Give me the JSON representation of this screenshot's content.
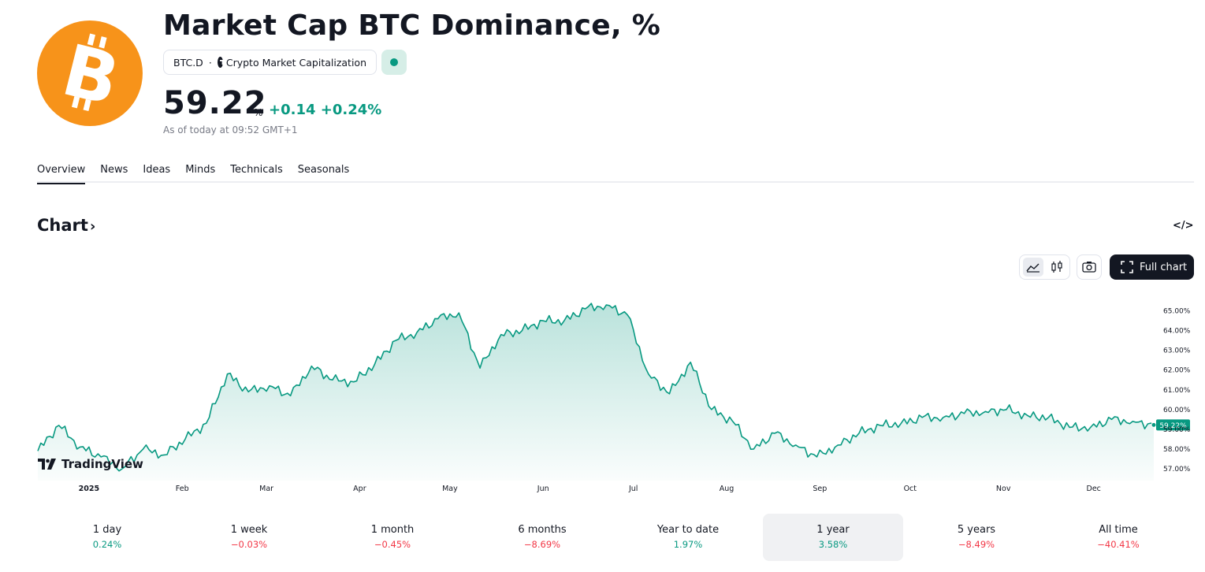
{
  "header": {
    "title": "Market Cap BTC Dominance, %",
    "symbol": "BTC.D",
    "separator": "·",
    "source": "Crypto Market Capitalization",
    "price": "59.22",
    "unit": "%",
    "change": "+0.14",
    "change_pct": "+0.24%",
    "as_of": "As of today at 09:52 GMT+1",
    "logo_icon": "bitcoin-icon",
    "status": "market-open"
  },
  "tabs": [
    "Overview",
    "News",
    "Ideas",
    "Minds",
    "Technicals",
    "Seasonals"
  ],
  "active_tab": "Overview",
  "chart_section": {
    "heading": "Chart",
    "chevron": "›",
    "embed_label": "</>",
    "full_chart_label": "Full chart",
    "watermark": "TradingView"
  },
  "chart_data": {
    "type": "area",
    "x_labels": [
      "2025",
      "Feb",
      "Mar",
      "Apr",
      "May",
      "Jun",
      "Jul",
      "Aug",
      "Sep",
      "Oct",
      "Nov",
      "Dec"
    ],
    "y_ticks": [
      "57.00%",
      "58.00%",
      "59.00%",
      "60.00%",
      "61.00%",
      "62.00%",
      "63.00%",
      "64.00%",
      "65.00%"
    ],
    "ylim": [
      56.4,
      65.9
    ],
    "last_value_label": "59.22%",
    "x": [
      "2024-12-15",
      "2024-12-22",
      "2024-12-29",
      "2025-01-05",
      "2025-01-12",
      "2025-01-19",
      "2025-01-26",
      "2025-02-02",
      "2025-02-09",
      "2025-02-16",
      "2025-02-23",
      "2025-03-02",
      "2025-03-09",
      "2025-03-16",
      "2025-03-23",
      "2025-03-30",
      "2025-04-06",
      "2025-04-13",
      "2025-04-20",
      "2025-04-27",
      "2025-05-04",
      "2025-05-11",
      "2025-05-18",
      "2025-05-25",
      "2025-06-01",
      "2025-06-08",
      "2025-06-15",
      "2025-06-22",
      "2025-06-29",
      "2025-07-06",
      "2025-07-13",
      "2025-07-20",
      "2025-07-27",
      "2025-08-03",
      "2025-08-10",
      "2025-08-17",
      "2025-08-24",
      "2025-08-31",
      "2025-09-07",
      "2025-09-14",
      "2025-09-21",
      "2025-09-28",
      "2025-10-05",
      "2025-10-12",
      "2025-10-19",
      "2025-10-26",
      "2025-11-02",
      "2025-11-09",
      "2025-11-16",
      "2025-11-23",
      "2025-11-30",
      "2025-12-07",
      "2025-12-14",
      "2025-12-21"
    ],
    "values": [
      57.9,
      59.2,
      58.1,
      57.6,
      57.0,
      58.0,
      57.7,
      58.5,
      59.3,
      61.8,
      60.9,
      61.2,
      60.7,
      62.2,
      61.5,
      61.4,
      62.3,
      63.5,
      63.9,
      64.6,
      64.9,
      62.1,
      63.8,
      64.0,
      64.5,
      64.5,
      65.1,
      65.3,
      64.8,
      61.8,
      60.8,
      62.4,
      60.0,
      59.4,
      58.0,
      58.8,
      58.2,
      57.6,
      58.2,
      58.8,
      59.2,
      59.3,
      59.6,
      59.6,
      59.8,
      59.9,
      60.0,
      59.7,
      59.6,
      59.1,
      59.1,
      59.5,
      59.4,
      59.22
    ],
    "color": "#089981",
    "fill_color": "#089981",
    "grid": false
  },
  "periods": [
    {
      "label": "1 day",
      "value": "0.24%",
      "dir": "pos"
    },
    {
      "label": "1 week",
      "value": "−0.03%",
      "dir": "neg"
    },
    {
      "label": "1 month",
      "value": "−0.45%",
      "dir": "neg"
    },
    {
      "label": "6 months",
      "value": "−8.69%",
      "dir": "neg"
    },
    {
      "label": "Year to date",
      "value": "1.97%",
      "dir": "pos"
    },
    {
      "label": "1 year",
      "value": "3.58%",
      "dir": "pos",
      "active": true
    },
    {
      "label": "5 years",
      "value": "−8.49%",
      "dir": "neg"
    },
    {
      "label": "All time",
      "value": "−40.41%",
      "dir": "neg"
    }
  ]
}
